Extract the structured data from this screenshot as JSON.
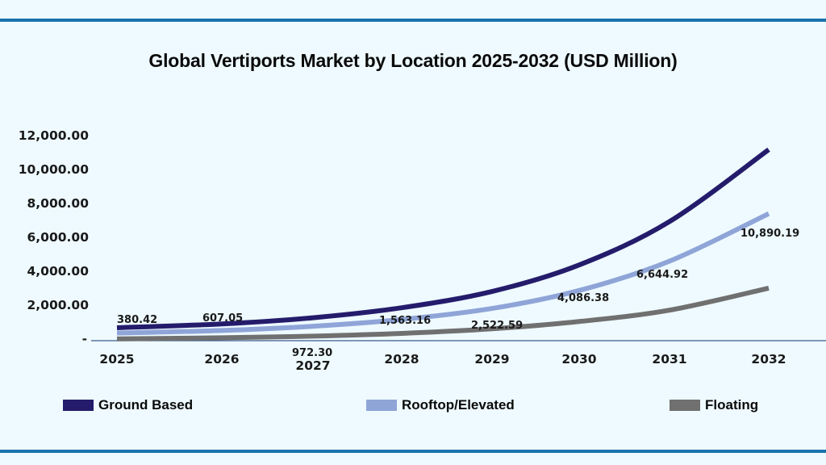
{
  "chart_data": {
    "type": "line",
    "title": "Global Vertiports Market by Location 2025-2032 (USD Million)",
    "xlabel": "",
    "ylabel": "",
    "categories": [
      "2025",
      "2026",
      "2027",
      "2028",
      "2029",
      "2030",
      "2031",
      "2032"
    ],
    "ylim": [
      0,
      12000
    ],
    "yticks": [
      "12,000.00",
      "10,000.00",
      "8,000.00",
      "6,000.00",
      "4,000.00",
      "2,000.00",
      "-"
    ],
    "grid": false,
    "legend_position": "bottom",
    "series": [
      {
        "name": "Ground Based",
        "color": "#241c6b",
        "values": [
          380.42,
          607.05,
          972.3,
          1563.16,
          2522.59,
          4086.38,
          6644.92,
          10890.19
        ]
      },
      {
        "name": "Rooftop/Elevated",
        "color": "#8fa5d8",
        "values": [
          260,
          410,
          660,
          1060,
          1710,
          2770,
          4500,
          7300
        ]
      },
      {
        "name": "Floating",
        "color": "#707070",
        "values": [
          110,
          170,
          270,
          430,
          700,
          1130,
          1800,
          3100
        ]
      }
    ],
    "data_labels": [
      "380.42",
      "607.05",
      "972.30",
      "1,563.16",
      "2,522.59",
      "4,086.38",
      "6,644.92",
      "10,890.19"
    ]
  },
  "colors": {
    "background": "#eefaff",
    "rule": "#1a74ad",
    "axis": "#3a5a8c"
  }
}
